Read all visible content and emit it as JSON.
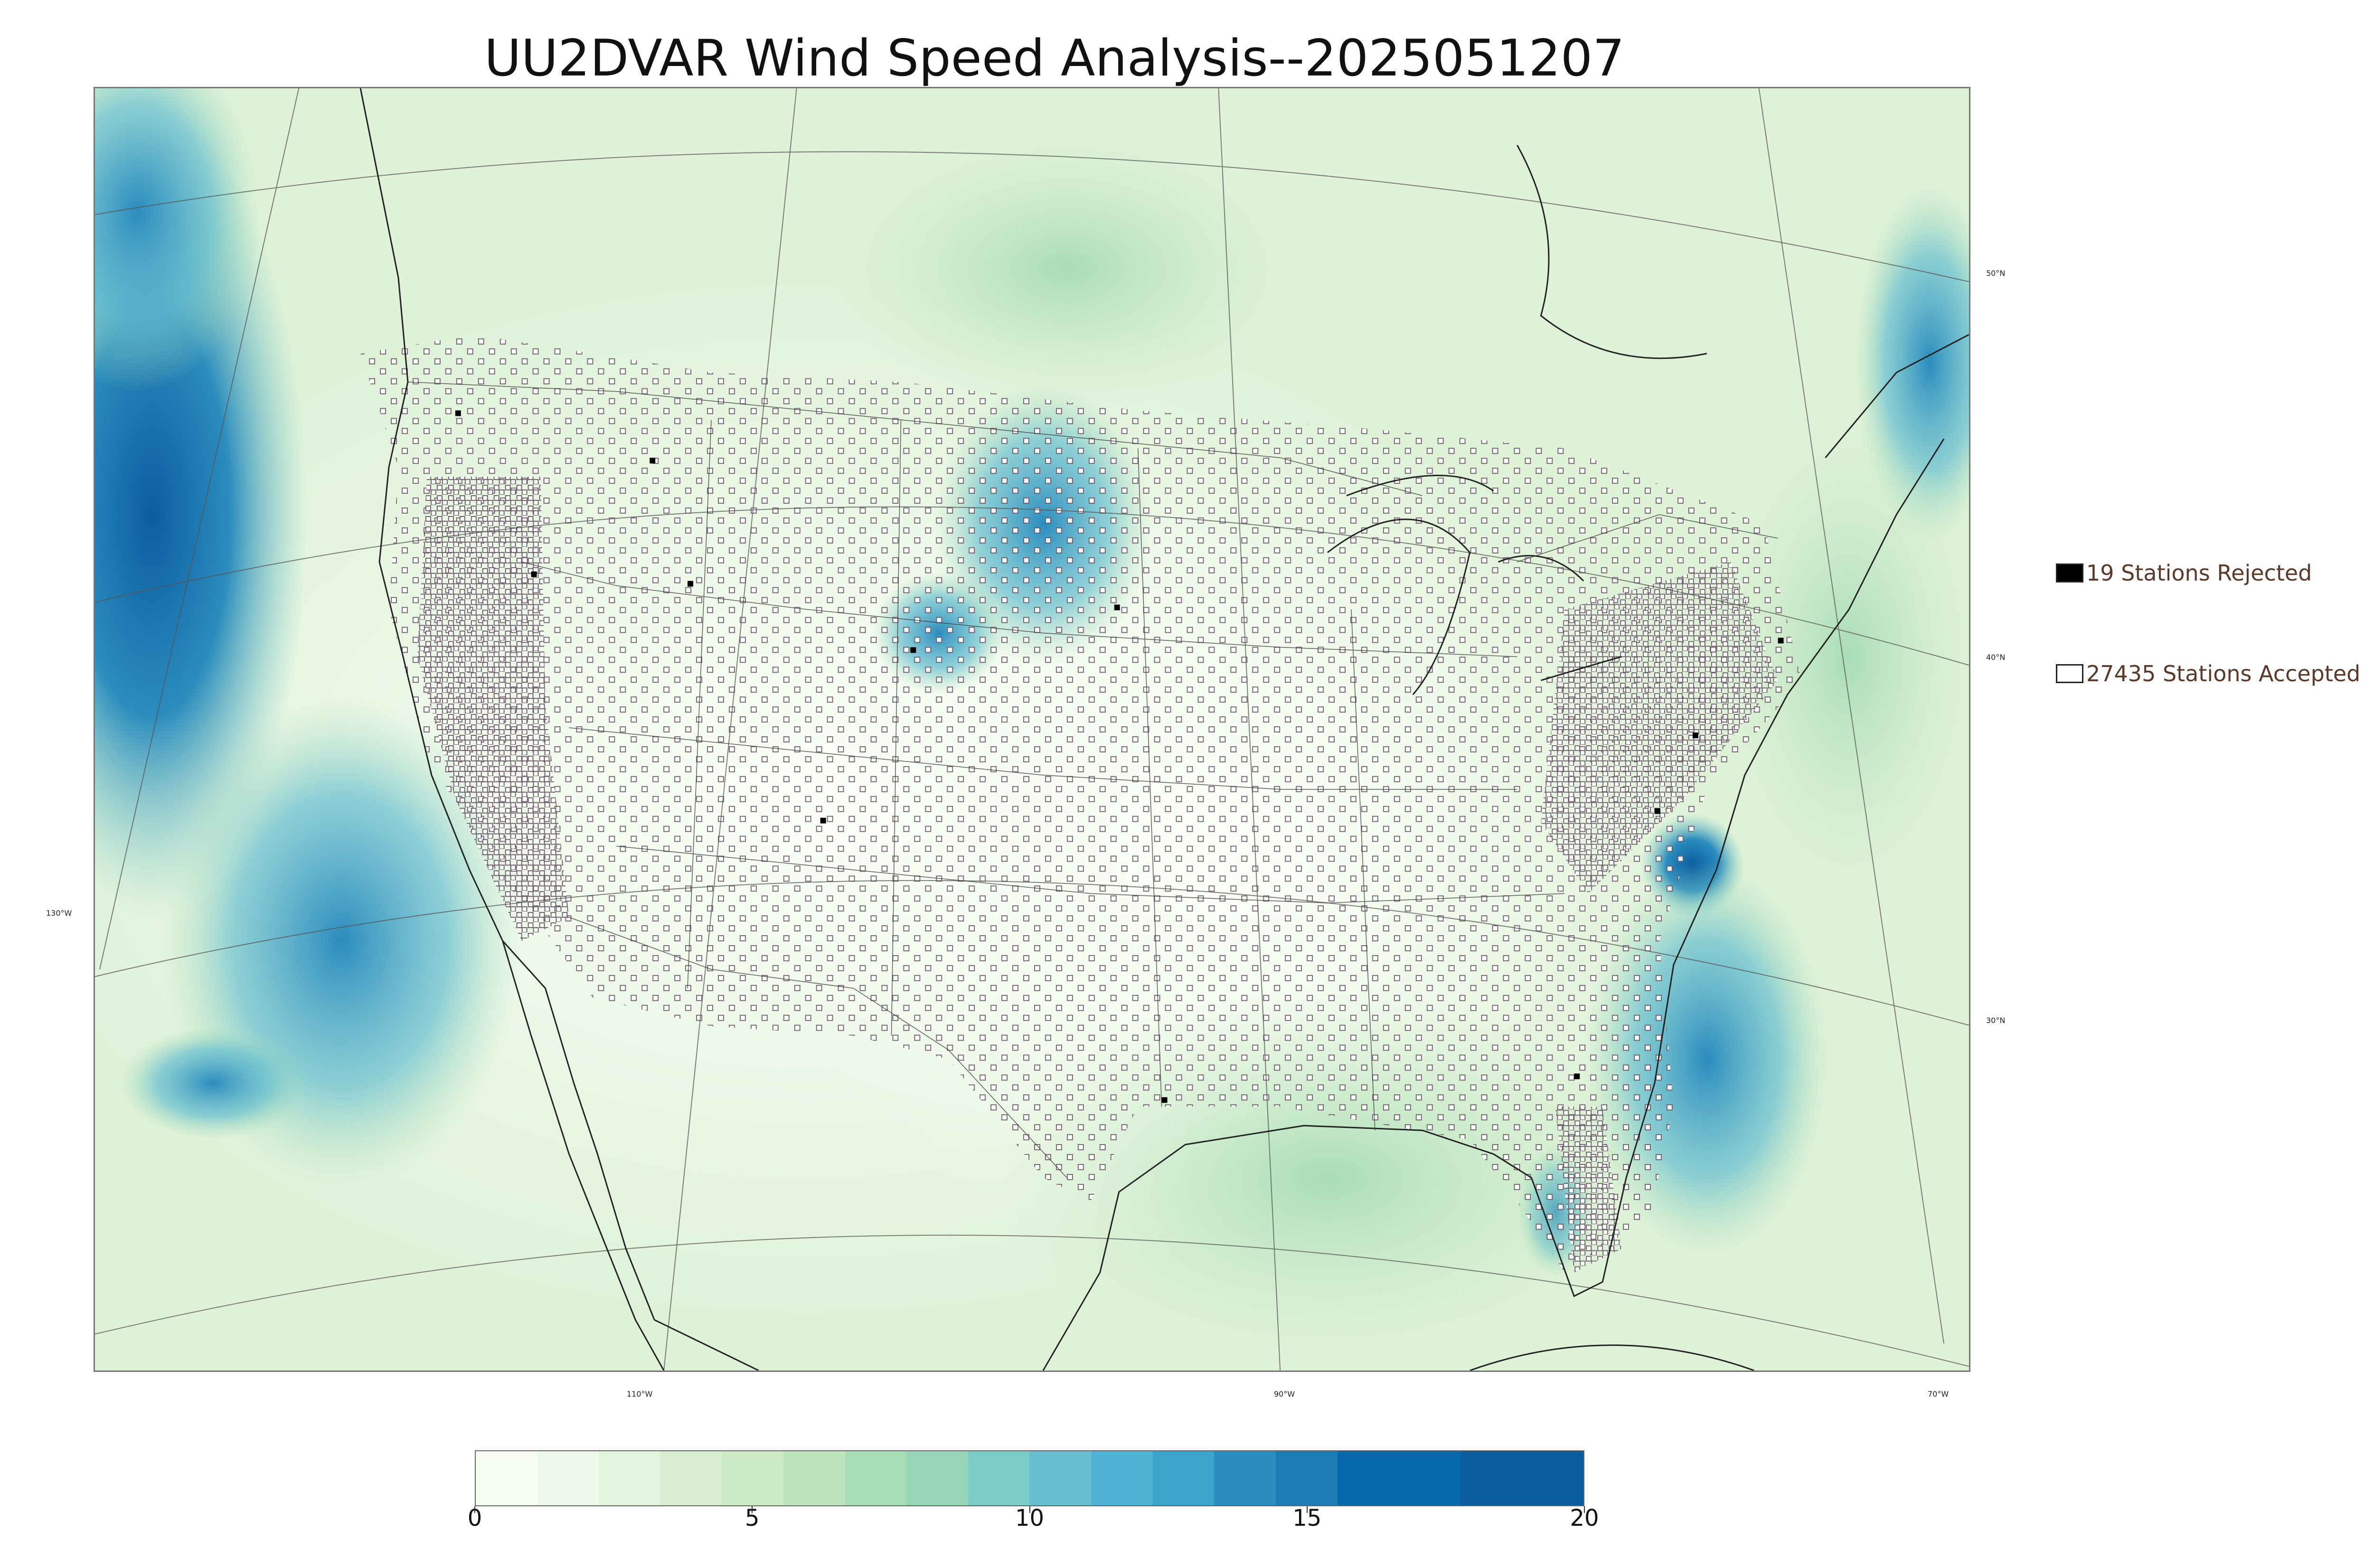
{
  "title": "UU2DVAR Wind Speed Analysis--2025051207",
  "map": {
    "lat_labels": [
      "50°N",
      "40°N",
      "30°N"
    ],
    "lon_labels": [
      "130°W",
      "110°W",
      "90°W",
      "70°W"
    ]
  },
  "legend": {
    "rejected_label": "19 Stations Rejected",
    "rejected_color": "#000000",
    "accepted_label": "27435 Stations Accepted",
    "accepted_color": "#ffffff"
  },
  "colorbar": {
    "min": 0,
    "max": 20,
    "tick_labels": [
      "0",
      "5",
      "10",
      "15",
      "20"
    ],
    "colors": [
      "#f7fcf0",
      "#eef8e8",
      "#e3f4dc",
      "#d7efd0",
      "#ccebc5",
      "#bde5bd",
      "#a8ddb5",
      "#95d5b8",
      "#7bccc4",
      "#67bfd0",
      "#4eb3d3",
      "#3ba4cb",
      "#2b8cbe",
      "#1d7cb6",
      "#0868ac",
      "#0b5d9f"
    ]
  }
}
